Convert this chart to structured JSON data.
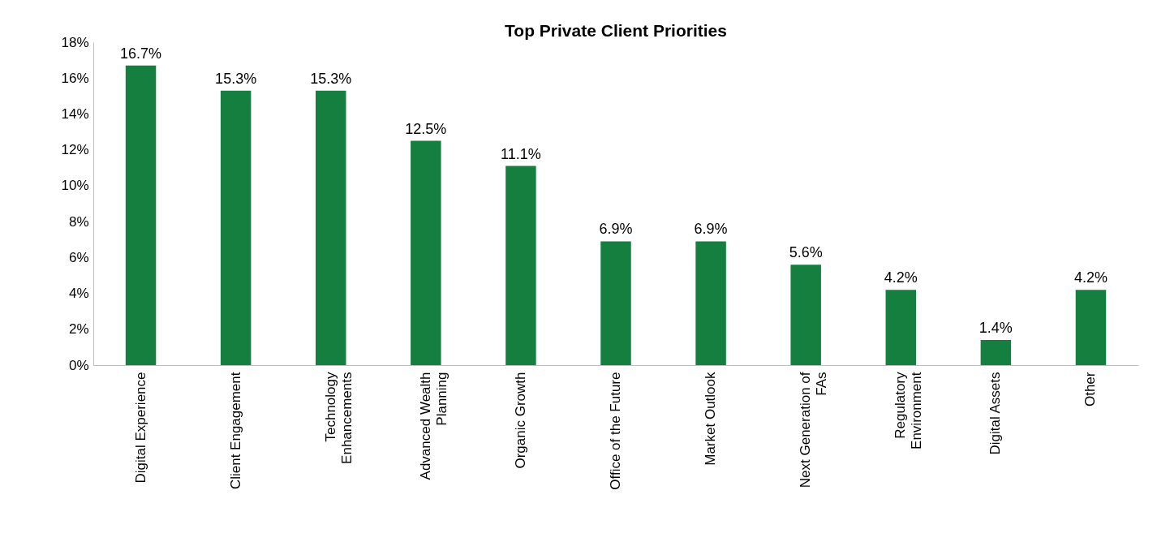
{
  "chart_data": {
    "type": "bar",
    "title": "Top Private Client Priorities",
    "categories": [
      "Digital Experience",
      "Client Engagement",
      "Technology Enhancements",
      "Advanced Wealth Planning",
      "Organic Growth",
      "Office of the Future",
      "Market Outlook",
      "Next Generation of FAs",
      "Regulatory Environment",
      "Digital Assets",
      "Other"
    ],
    "values": [
      16.7,
      15.3,
      15.3,
      12.5,
      11.1,
      6.9,
      6.9,
      5.6,
      4.2,
      1.4,
      4.2
    ],
    "value_labels": [
      "16.7%",
      "15.3%",
      "15.3%",
      "12.5%",
      "11.1%",
      "6.9%",
      "6.9%",
      "5.6%",
      "4.2%",
      "1.4%",
      "4.2%"
    ],
    "color": "#157f3f",
    "ylim": [
      0,
      18
    ],
    "yticks": [
      {
        "value": 0,
        "label": "0%"
      },
      {
        "value": 2,
        "label": "2%"
      },
      {
        "value": 4,
        "label": "4%"
      },
      {
        "value": 6,
        "label": "6%"
      },
      {
        "value": 8,
        "label": "8%"
      },
      {
        "value": 10,
        "label": "10%"
      },
      {
        "value": 12,
        "label": "12%"
      },
      {
        "value": 14,
        "label": "14%"
      },
      {
        "value": 16,
        "label": "16%"
      },
      {
        "value": 18,
        "label": "18%"
      }
    ],
    "grid": false
  }
}
